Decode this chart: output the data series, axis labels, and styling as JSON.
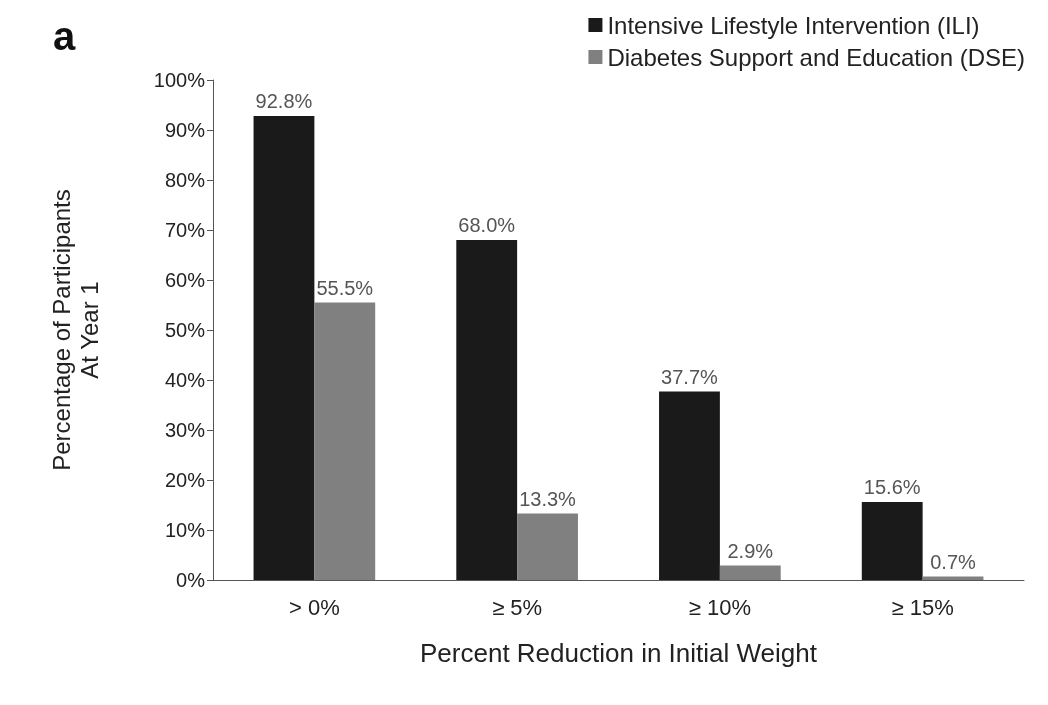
{
  "chart_data": {
    "type": "bar",
    "categories": [
      "> 0%",
      "≥ 5%",
      "≥ 10%",
      "≥ 15%"
    ],
    "series": [
      {
        "name": "Intensive Lifestyle Intervention (ILI)",
        "color": "#1a1a1a",
        "values": [
          92.8,
          68.0,
          37.7,
          15.6
        ],
        "value_labels": [
          "92.8%",
          "68.0%",
          "37.7%",
          "15.6%"
        ]
      },
      {
        "name": "Diabetes Support and Education (DSE)",
        "color": "#808080",
        "values": [
          55.5,
          13.3,
          2.9,
          0.7
        ],
        "value_labels": [
          "55.5%",
          "13.3%",
          "2.9%",
          "0.7%"
        ]
      }
    ],
    "xlabel": "Percent Reduction in Initial Weight",
    "ylabel": "Percentage of Participants\nAt Year 1",
    "ylim": [
      0,
      100
    ],
    "yticks": [
      {
        "value": 0,
        "label": "0%"
      },
      {
        "value": 10,
        "label": "10%"
      },
      {
        "value": 20,
        "label": "20%"
      },
      {
        "value": 30,
        "label": "30%"
      },
      {
        "value": 40,
        "label": "40%"
      },
      {
        "value": 50,
        "label": "50%"
      },
      {
        "value": 60,
        "label": "60%"
      },
      {
        "value": 70,
        "label": "70%"
      },
      {
        "value": 80,
        "label": "80%"
      },
      {
        "value": 90,
        "label": "90%"
      },
      {
        "value": 100,
        "label": "100%"
      }
    ],
    "annotations": [
      "a"
    ],
    "legend": "top right",
    "grid": false
  }
}
